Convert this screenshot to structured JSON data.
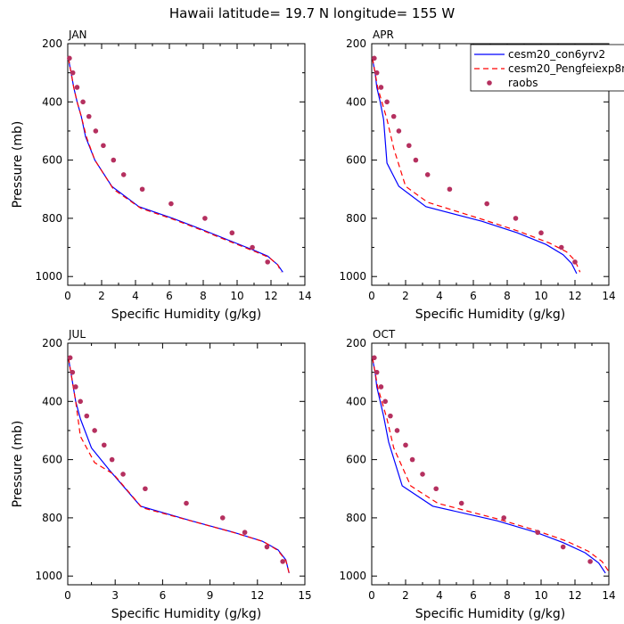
{
  "figure": {
    "title": "Hawaii  latitude= 19.7 N longitude= 155 W"
  },
  "chart_data": [
    {
      "type": "line",
      "panel_label": "JAN",
      "xlabel": "Specific Humidity (g/kg)",
      "ylabel": "Pressure (mb)",
      "xlim": [
        0,
        14
      ],
      "ylim": [
        200,
        1030
      ],
      "y_inverted": true,
      "xticks": [
        0,
        2,
        4,
        6,
        8,
        10,
        12,
        14
      ],
      "yticks": [
        200,
        400,
        600,
        800,
        1000
      ],
      "show_legend": false,
      "series": [
        {
          "name": "cesm20_con6yrv2",
          "color": "#0000ff",
          "dash": "solid",
          "x": [
            0.05,
            0.1,
            0.2,
            0.35,
            0.55,
            0.8,
            1.05,
            1.6,
            2.6,
            4.2,
            6.2,
            8.0,
            9.7,
            11.0,
            11.8,
            12.4,
            12.7
          ],
          "y": [
            250,
            270,
            300,
            350,
            400,
            450,
            520,
            600,
            690,
            760,
            800,
            840,
            880,
            910,
            930,
            960,
            985
          ]
        },
        {
          "name": "cesm20_Pengfeiexp8m",
          "color": "#ff0000",
          "dash": "dashed",
          "x": [
            0.05,
            0.1,
            0.2,
            0.35,
            0.55,
            0.8,
            1.1,
            1.6,
            2.7,
            4.3,
            6.3,
            8.1,
            9.8,
            11.1,
            11.9,
            12.4,
            12.6
          ],
          "y": [
            250,
            270,
            300,
            350,
            400,
            450,
            520,
            600,
            700,
            765,
            805,
            845,
            885,
            915,
            935,
            960,
            985
          ]
        },
        {
          "name": "raobs",
          "color": "#b5305f",
          "marker": "dot",
          "x": [
            0.1,
            0.3,
            0.55,
            0.9,
            1.25,
            1.65,
            2.1,
            2.7,
            3.3,
            4.4,
            6.1,
            8.1,
            9.7,
            10.9,
            11.8
          ],
          "y": [
            250,
            300,
            350,
            400,
            450,
            500,
            550,
            600,
            650,
            700,
            750,
            800,
            850,
            900,
            950
          ]
        }
      ]
    },
    {
      "type": "line",
      "panel_label": "APR",
      "xlabel": "Specific Humidity (g/kg)",
      "ylabel": "",
      "xlim": [
        0,
        14
      ],
      "ylim": [
        200,
        1030
      ],
      "y_inverted": true,
      "xticks": [
        0,
        2,
        4,
        6,
        8,
        10,
        12,
        14
      ],
      "yticks": [
        200,
        400,
        600,
        800,
        1000
      ],
      "show_legend": true,
      "series": [
        {
          "name": "cesm20_con6yrv2",
          "color": "#0000ff",
          "dash": "solid",
          "x": [
            0.05,
            0.1,
            0.2,
            0.3,
            0.5,
            0.7,
            0.9,
            1.6,
            3.2,
            6.5,
            8.6,
            10.3,
            11.3,
            11.8,
            12.1
          ],
          "y": [
            250,
            270,
            300,
            350,
            400,
            460,
            610,
            690,
            760,
            810,
            850,
            890,
            925,
            955,
            990
          ]
        },
        {
          "name": "cesm20_Pengfeiexp8m",
          "color": "#ff0000",
          "dash": "dashed",
          "x": [
            0.05,
            0.1,
            0.2,
            0.35,
            0.6,
            0.9,
            1.3,
            2.0,
            3.3,
            6.6,
            8.7,
            10.5,
            11.5,
            12.0,
            12.3
          ],
          "y": [
            250,
            270,
            300,
            350,
            400,
            460,
            560,
            690,
            745,
            805,
            845,
            885,
            915,
            945,
            985
          ]
        },
        {
          "name": "raobs",
          "color": "#b5305f",
          "marker": "dot",
          "x": [
            0.15,
            0.3,
            0.55,
            0.9,
            1.3,
            1.6,
            2.2,
            2.6,
            3.3,
            4.6,
            6.8,
            8.5,
            10.0,
            11.2,
            12.0
          ],
          "y": [
            250,
            300,
            350,
            400,
            450,
            500,
            550,
            600,
            650,
            700,
            750,
            800,
            850,
            900,
            950
          ]
        }
      ]
    },
    {
      "type": "line",
      "panel_label": "JUL",
      "xlabel": "Specific Humidity (g/kg)",
      "ylabel": "Pressure (mb)",
      "xlim": [
        0,
        15
      ],
      "ylim": [
        200,
        1030
      ],
      "y_inverted": true,
      "xticks": [
        0,
        3,
        6,
        9,
        12,
        15
      ],
      "yticks": [
        200,
        400,
        600,
        800,
        1000
      ],
      "show_legend": false,
      "series": [
        {
          "name": "cesm20_con6yrv2",
          "color": "#0000ff",
          "dash": "solid",
          "x": [
            0.05,
            0.1,
            0.2,
            0.35,
            0.5,
            0.8,
            1.5,
            2.7,
            4.6,
            7.8,
            10.5,
            12.3,
            13.3,
            13.8,
            14.0
          ],
          "y": [
            250,
            270,
            300,
            350,
            400,
            460,
            560,
            640,
            760,
            810,
            850,
            880,
            910,
            945,
            990
          ]
        },
        {
          "name": "cesm20_Pengfeiexp8m",
          "color": "#ff0000",
          "dash": "dashed",
          "x": [
            0.05,
            0.1,
            0.2,
            0.35,
            0.5,
            0.8,
            1.7,
            2.9,
            4.7,
            7.9,
            10.6,
            12.4,
            13.3,
            13.8,
            14.0
          ],
          "y": [
            250,
            270,
            300,
            350,
            400,
            520,
            610,
            650,
            765,
            812,
            852,
            882,
            912,
            947,
            990
          ]
        },
        {
          "name": "raobs",
          "color": "#b5305f",
          "marker": "dot",
          "x": [
            0.15,
            0.3,
            0.5,
            0.8,
            1.2,
            1.7,
            2.3,
            2.8,
            3.5,
            4.9,
            7.5,
            9.8,
            11.2,
            12.6,
            13.6
          ],
          "y": [
            250,
            300,
            350,
            400,
            450,
            500,
            550,
            600,
            650,
            700,
            750,
            800,
            850,
            900,
            950
          ]
        }
      ]
    },
    {
      "type": "line",
      "panel_label": "OCT",
      "xlabel": "Specific Humidity (g/kg)",
      "ylabel": "",
      "xlim": [
        0,
        14
      ],
      "ylim": [
        200,
        1030
      ],
      "y_inverted": true,
      "xticks": [
        0,
        2,
        4,
        6,
        8,
        10,
        12,
        14
      ],
      "yticks": [
        200,
        400,
        600,
        800,
        1000
      ],
      "show_legend": false,
      "series": [
        {
          "name": "cesm20_con6yrv2",
          "color": "#0000ff",
          "dash": "solid",
          "x": [
            0.05,
            0.1,
            0.2,
            0.3,
            0.5,
            0.7,
            1.0,
            1.8,
            3.6,
            7.4,
            9.7,
            11.3,
            12.6,
            13.4,
            13.8
          ],
          "y": [
            250,
            270,
            300,
            350,
            400,
            450,
            540,
            690,
            760,
            810,
            850,
            885,
            920,
            955,
            990
          ]
        },
        {
          "name": "cesm20_Pengfeiexp8m",
          "color": "#ff0000",
          "dash": "dashed",
          "x": [
            0.05,
            0.1,
            0.2,
            0.35,
            0.6,
            0.9,
            1.3,
            2.3,
            3.9,
            7.5,
            9.8,
            11.5,
            12.8,
            13.6,
            14.0
          ],
          "y": [
            250,
            270,
            300,
            350,
            400,
            460,
            560,
            690,
            750,
            805,
            845,
            880,
            915,
            950,
            985
          ]
        },
        {
          "name": "raobs",
          "color": "#b5305f",
          "marker": "dot",
          "x": [
            0.15,
            0.3,
            0.55,
            0.8,
            1.1,
            1.5,
            2.0,
            2.4,
            3.0,
            3.8,
            5.3,
            7.8,
            9.8,
            11.3,
            12.9
          ],
          "y": [
            250,
            300,
            350,
            400,
            450,
            500,
            550,
            600,
            650,
            700,
            750,
            800,
            850,
            900,
            950
          ]
        }
      ]
    }
  ]
}
